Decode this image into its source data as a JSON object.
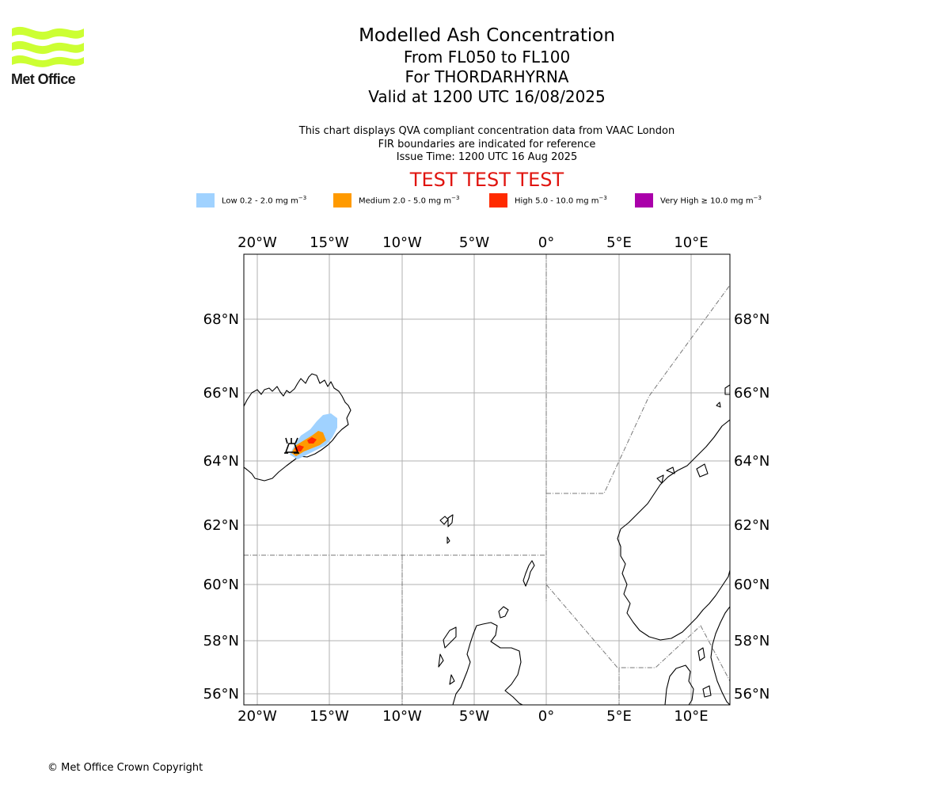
{
  "brand": {
    "logo_text": "Met Office",
    "logo_color": "#ccff33"
  },
  "title": {
    "line1": "Modelled Ash Concentration",
    "line2": "From FL050 to FL100",
    "line3": "For THORDARHYRNA",
    "line4": "Valid at 1200 UTC 16/08/2025"
  },
  "subtitle": {
    "line1": "This chart displays QVA compliant concentration data from VAAC London",
    "line2": "FIR boundaries are indicated for reference",
    "line3": "Issue Time: 1200 UTC 16 Aug 2025"
  },
  "test_banner": "TEST TEST TEST",
  "legend": [
    {
      "label": "Low 0.2 - 2.0 mg m",
      "color": "#a0d2ff"
    },
    {
      "label": "Medium 2.0 - 5.0 mg m",
      "color": "#ff9a00"
    },
    {
      "label": "High 5.0 - 10.0 mg m",
      "color": "#ff2a00"
    },
    {
      "label": "Very High ≥ 10.0 mg m",
      "color": "#aa00aa"
    }
  ],
  "legend_unit_exponent": "−3",
  "map": {
    "lon_ticks": [
      "20°W",
      "15°W",
      "10°W",
      "5°W",
      "0°",
      "5°E",
      "10°E"
    ],
    "lat_ticks": [
      "68°N",
      "66°N",
      "64°N",
      "62°N",
      "60°N",
      "58°N",
      "56°N"
    ],
    "volcano_marker": "volcano-icon"
  },
  "copyright": "© Met Office Crown Copyright"
}
